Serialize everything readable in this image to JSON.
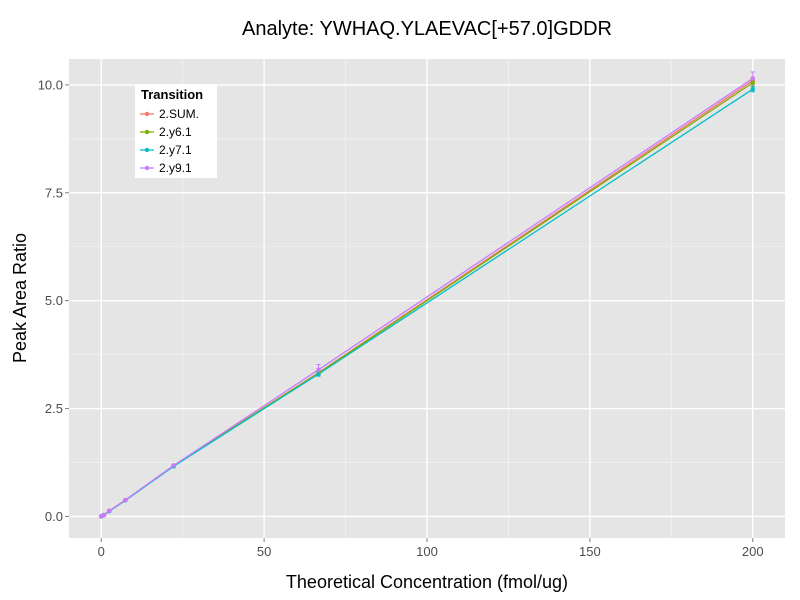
{
  "chart_data": {
    "type": "line",
    "title": "Analyte: YWHAQ.YLAEVAC[+57.0]GDDR",
    "xlabel": "Theoretical Concentration (fmol/ug)",
    "ylabel": "Peak Area Ratio",
    "xlim": [
      -9.9,
      209.9
    ],
    "ylim": [
      -0.5,
      10.6
    ],
    "x_ticks": [
      0,
      50,
      100,
      150,
      200
    ],
    "x_tick_labels": [
      "0",
      "50",
      "100",
      "150",
      "200"
    ],
    "y_ticks": [
      0,
      2.5,
      5,
      7.5,
      10
    ],
    "y_tick_labels": [
      "0.0",
      "2.5",
      "5.0",
      "7.5",
      "10.0"
    ],
    "grid": true,
    "legend": {
      "title": "Transition",
      "position": "top-left-inside"
    },
    "x": [
      0,
      0.27,
      0.82,
      2.47,
      7.41,
      22.2,
      66.7,
      200
    ],
    "series": [
      {
        "name": "2.SUM.",
        "color": "#F8766D",
        "values": [
          0,
          0.01,
          0.03,
          0.13,
          0.38,
          1.18,
          3.33,
          10.1
        ],
        "error": [
          0,
          0,
          0,
          0.02,
          0.02,
          0.03,
          0.05,
          0.08
        ]
      },
      {
        "name": "2.y6.1",
        "color": "#7CAE00",
        "values": [
          0,
          0.01,
          0.03,
          0.13,
          0.38,
          1.17,
          3.32,
          10.05
        ],
        "error": [
          0,
          0,
          0,
          0.02,
          0.02,
          0.03,
          0.05,
          0.08
        ]
      },
      {
        "name": "2.y7.1",
        "color": "#00BFC4",
        "values": [
          0,
          0.01,
          0.03,
          0.12,
          0.37,
          1.16,
          3.3,
          9.9
        ],
        "error": [
          0,
          0,
          0,
          0.02,
          0.02,
          0.03,
          0.05,
          0.06
        ]
      },
      {
        "name": "2.y9.1",
        "color": "#C77CFF",
        "values": [
          0,
          0.01,
          0.03,
          0.13,
          0.38,
          1.18,
          3.4,
          10.15
        ],
        "error": [
          0,
          0,
          0,
          0.02,
          0.02,
          0.03,
          0.12,
          0.15
        ]
      }
    ]
  }
}
